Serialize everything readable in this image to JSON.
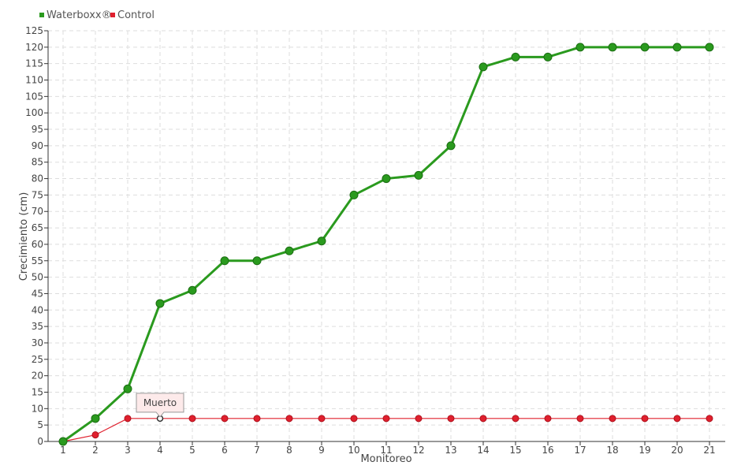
{
  "chart_data": {
    "type": "line",
    "title": "",
    "xlabel": "Monitoreo",
    "ylabel": "Crecimiento (cm)",
    "categories": [
      "1",
      "2",
      "3",
      "4",
      "5",
      "6",
      "7",
      "8",
      "9",
      "10",
      "11",
      "12",
      "13",
      "14",
      "15",
      "16",
      "17",
      "18",
      "19",
      "20",
      "21"
    ],
    "ylim": [
      0,
      125
    ],
    "ytick_step": 5,
    "grid": true,
    "legend_position": "top-left",
    "series": [
      {
        "name": "Waterboxx®",
        "color": "#2a9a1e",
        "values": [
          0,
          7,
          16,
          42,
          46,
          55,
          55,
          58,
          61,
          75,
          80,
          81,
          90,
          114,
          117,
          117,
          120,
          120,
          120,
          120,
          120
        ]
      },
      {
        "name": "Control",
        "color": "#e0202e",
        "values": [
          0,
          2,
          7,
          7,
          7,
          7,
          7,
          7,
          7,
          7,
          7,
          7,
          7,
          7,
          7,
          7,
          7,
          7,
          7,
          7,
          7
        ]
      }
    ],
    "annotations": [
      {
        "text": "Muerto",
        "series": "Control",
        "category": "4",
        "value": 7
      }
    ]
  }
}
